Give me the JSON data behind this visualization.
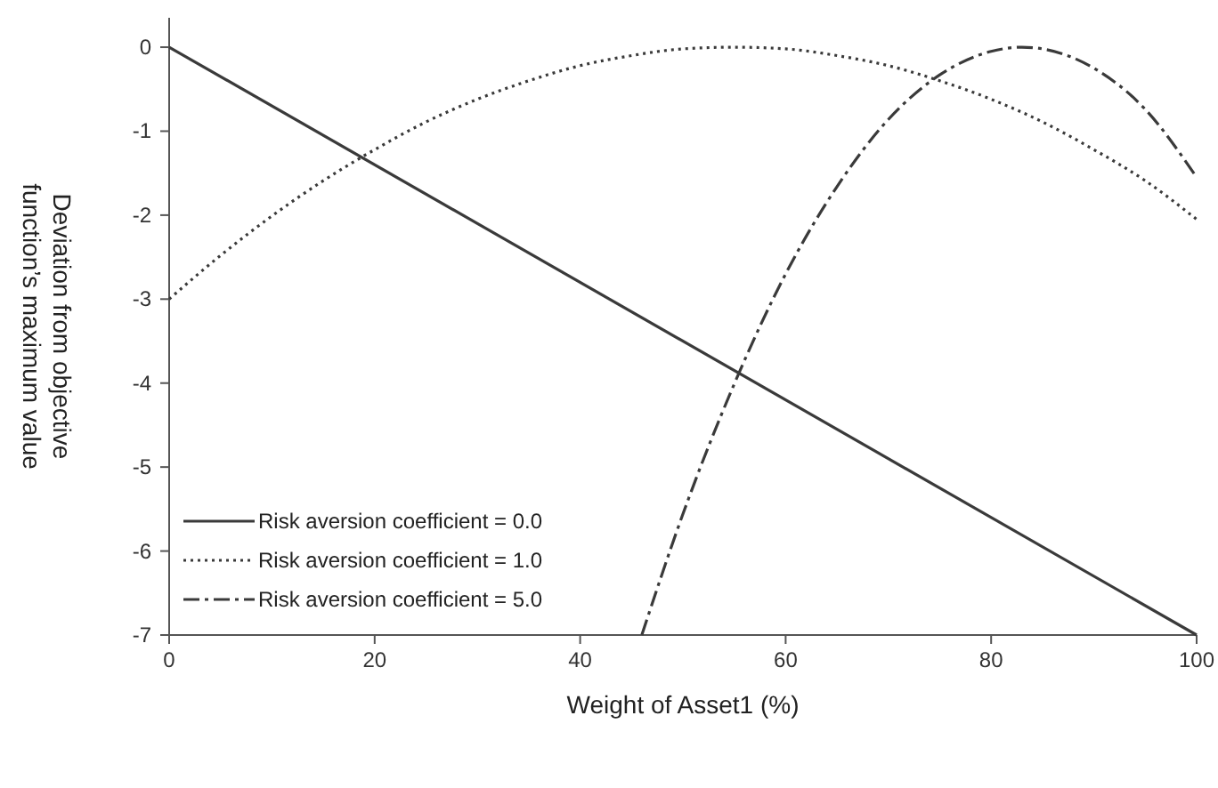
{
  "chart_data": {
    "type": "line",
    "xlabel": "Weight of Asset1 (%)",
    "ylabel": "Deviation from objective function’s maximum value",
    "xlim": [
      0,
      100
    ],
    "xticks": [
      0,
      20,
      40,
      60,
      80,
      100
    ],
    "ylim": [
      -7,
      0.35
    ],
    "yticks": [
      -7,
      -6,
      -5,
      -4,
      -3,
      -2,
      -1,
      0
    ],
    "legend": "bottom left",
    "series": [
      {
        "name": "Risk aversion coefficient = 0.0",
        "color": "#3a3a3a",
        "line_style": "solid",
        "x": [
          0,
          100
        ],
        "values": [
          0,
          -7
        ]
      },
      {
        "name": "Risk aversion coefficient = 1.0",
        "color": "#3a3a3a",
        "line_style": "dotted",
        "x": [
          0,
          5,
          10,
          15,
          20,
          25,
          30,
          35,
          40,
          45,
          50,
          55,
          60,
          65,
          70,
          75,
          80,
          85,
          90,
          95,
          100
        ],
        "values": [
          -3.0,
          -2.48,
          -2.01,
          -1.59,
          -1.22,
          -0.89,
          -0.62,
          -0.4,
          -0.22,
          -0.1,
          -0.02,
          0,
          -0.02,
          -0.1,
          -0.22,
          -0.4,
          -0.62,
          -0.89,
          -1.22,
          -1.59,
          -2.05
        ]
      },
      {
        "name": "Risk aversion coefficient = 5.0",
        "color": "#3a3a3a",
        "line_style": "dashdot",
        "x": [
          46,
          50,
          55,
          60,
          65,
          70,
          75,
          80,
          83,
          85,
          90,
          95,
          100
        ],
        "values": [
          -7.0,
          -5.56,
          -4.01,
          -2.7,
          -1.66,
          -0.86,
          -0.33,
          -0.05,
          0,
          -0.02,
          -0.25,
          -0.74,
          -1.55
        ]
      }
    ]
  }
}
